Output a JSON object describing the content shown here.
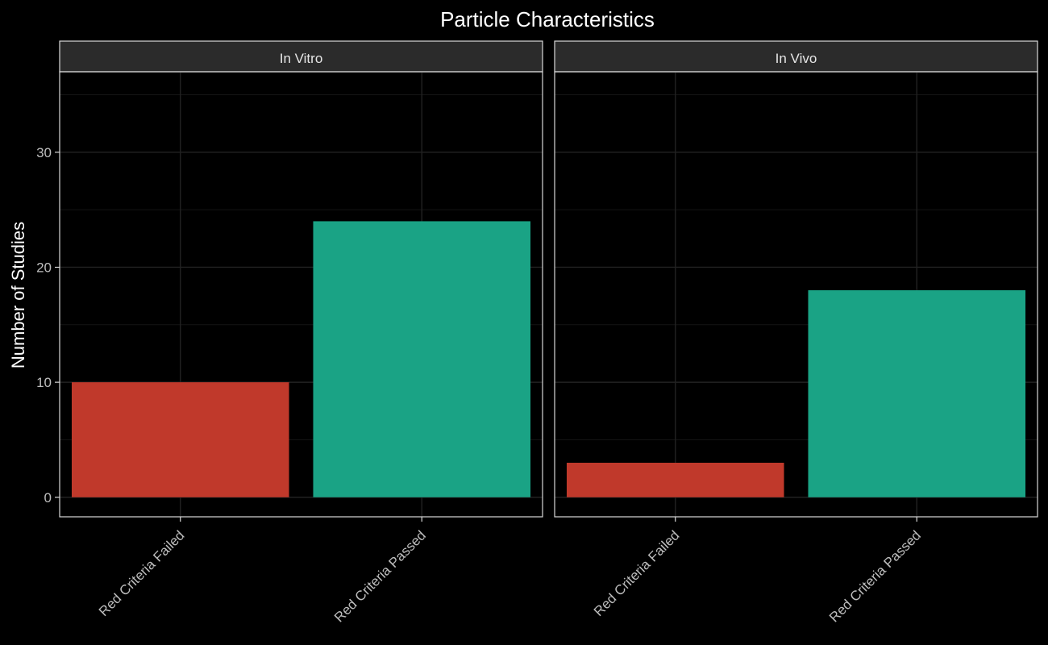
{
  "chart_data": {
    "type": "bar",
    "title": "Particle Characteristics",
    "ylabel": "Number of Studies",
    "xlabel": "",
    "ylim": [
      -1.7,
      37
    ],
    "yticks": [
      0,
      10,
      20,
      30
    ],
    "grid": true,
    "categories": [
      "Red Criteria Failed",
      "Red Criteria Passed"
    ],
    "colors": {
      "Red Criteria Failed": "#c0392b",
      "Red Criteria Passed": "#1aa385"
    },
    "panels": [
      {
        "name": "In Vitro",
        "values": [
          10,
          24
        ]
      },
      {
        "name": "In Vivo",
        "values": [
          3,
          18
        ]
      }
    ]
  }
}
